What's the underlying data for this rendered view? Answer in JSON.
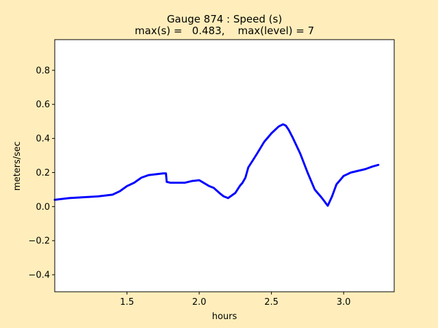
{
  "chart_data": {
    "type": "line",
    "title": "Gauge 874 : Speed (s)",
    "subtitle": "max(s) =   0.483,    max(level) = 7",
    "xlabel": "hours",
    "ylabel": "meters/sec",
    "xlim": [
      1.0,
      3.35
    ],
    "ylim": [
      -0.5,
      0.98
    ],
    "xticks": [
      1.5,
      2.0,
      2.5,
      3.0
    ],
    "xtick_labels": [
      "1.5",
      "2.0",
      "2.5",
      "3.0"
    ],
    "yticks": [
      -0.4,
      -0.2,
      0.0,
      0.2,
      0.4,
      0.6,
      0.8
    ],
    "ytick_labels": [
      "−0.4",
      "−0.2",
      "0.0",
      "0.2",
      "0.4",
      "0.6",
      "0.8"
    ],
    "grid": false,
    "colors": {
      "figure_bg": "#ffeebb",
      "axes_bg": "#ffffff",
      "line": "#0000ff"
    },
    "series": [
      {
        "color": "#0000ff",
        "x": [
          1.0,
          1.05,
          1.1,
          1.2,
          1.3,
          1.35,
          1.4,
          1.45,
          1.5,
          1.55,
          1.6,
          1.65,
          1.7,
          1.75,
          1.77,
          1.775,
          1.8,
          1.85,
          1.9,
          1.95,
          2.0,
          2.03,
          2.07,
          2.1,
          2.14,
          2.17,
          2.2,
          2.25,
          2.28,
          2.3,
          2.32,
          2.34,
          2.37,
          2.4,
          2.45,
          2.5,
          2.55,
          2.58,
          2.6,
          2.62,
          2.65,
          2.7,
          2.75,
          2.8,
          2.85,
          2.89,
          2.92,
          2.95,
          3.0,
          3.05,
          3.1,
          3.15,
          3.2,
          3.24
        ],
        "y": [
          0.04,
          0.045,
          0.05,
          0.055,
          0.06,
          0.065,
          0.07,
          0.09,
          0.12,
          0.14,
          0.17,
          0.185,
          0.19,
          0.195,
          0.195,
          0.145,
          0.14,
          0.14,
          0.14,
          0.15,
          0.155,
          0.14,
          0.12,
          0.11,
          0.08,
          0.06,
          0.05,
          0.08,
          0.12,
          0.14,
          0.17,
          0.23,
          0.27,
          0.31,
          0.38,
          0.43,
          0.47,
          0.483,
          0.475,
          0.45,
          0.4,
          0.31,
          0.2,
          0.1,
          0.05,
          0.005,
          0.06,
          0.13,
          0.18,
          0.2,
          0.21,
          0.22,
          0.235,
          0.245
        ]
      }
    ]
  }
}
